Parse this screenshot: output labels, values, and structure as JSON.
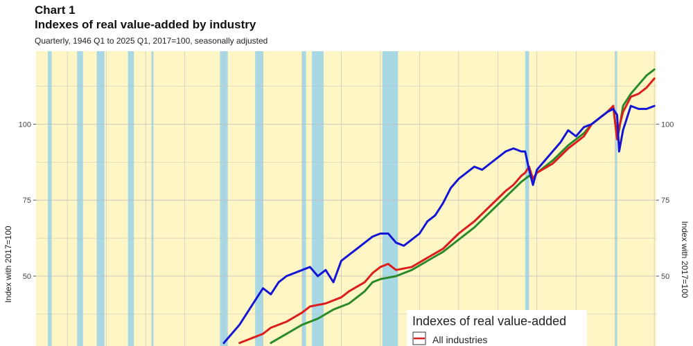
{
  "header": {
    "title": "Chart 1",
    "subtitle": "Indexes of real value-added by industry",
    "note": "Quarterly, 1946 Q1 to 2025 Q1, 2017=100, seasonally adjusted"
  },
  "colors": {
    "background": "#fff6c6",
    "recession": "#a8d8e4",
    "grid": "#bdbdbd",
    "all_industries": "#dd1c1c",
    "series_blue": "#1414d4",
    "series_green": "#2a8a2a"
  },
  "chart_data": {
    "type": "line",
    "title": "Indexes of real value-added by industry",
    "ylabel": "Index with 2017=100",
    "ylabel_right": "Index with 2017=100",
    "xlim": [
      1946,
      2025.25
    ],
    "ylim": [
      27,
      124
    ],
    "y_ticks": [
      50,
      75,
      100
    ],
    "y_tick_labels": [
      "50",
      "75",
      "100"
    ],
    "grid": true,
    "legend": {
      "title": "Indexes of real value-added",
      "placement": "bottom-right",
      "entries": [
        "All industries"
      ]
    },
    "recessions": [
      [
        1947.5,
        1948.0
      ],
      [
        1951.25,
        1952.0
      ],
      [
        1953.75,
        1954.75
      ],
      [
        1957.75,
        1958.5
      ],
      [
        1960.75,
        1961.0
      ],
      [
        1969.5,
        1970.5
      ],
      [
        1974.0,
        1975.0
      ],
      [
        1980.0,
        1980.5
      ],
      [
        1981.25,
        1982.75
      ],
      [
        1990.25,
        1992.25
      ],
      [
        2008.5,
        2009.0
      ],
      [
        2020.0,
        2020.25
      ]
    ],
    "series": [
      {
        "name": "All industries",
        "color": "#dd1c1c",
        "x": [
          1972,
          1974,
          1975,
          1976,
          1978,
          1980,
          1981,
          1983,
          1985,
          1986,
          1988,
          1989,
          1990,
          1991,
          1992,
          1994,
          1996,
          1998,
          2000,
          2001,
          2002,
          2004,
          2006,
          2007,
          2008,
          2008.5,
          2009,
          2009.5,
          2010,
          2012,
          2014,
          2015,
          2016,
          2017,
          2018,
          2019,
          2019.75,
          2020.25,
          2020.5,
          2021,
          2022,
          2023,
          2024,
          2025
        ],
        "values": [
          28,
          30,
          31,
          33,
          35,
          38,
          40,
          41,
          43,
          45,
          48,
          51,
          53,
          54,
          52,
          53,
          56,
          59,
          64,
          66,
          68,
          73,
          78,
          80,
          83,
          84,
          86,
          82,
          84,
          87,
          92,
          94,
          96,
          100,
          102,
          104,
          106,
          95,
          99,
          104,
          109,
          110,
          112,
          115
        ]
      },
      {
        "name": "",
        "color": "#1414d4",
        "x": [
          1970,
          1972,
          1973,
          1974,
          1975,
          1976,
          1977,
          1978,
          1979,
          1980,
          1981,
          1982,
          1983,
          1984,
          1985,
          1986,
          1987,
          1988,
          1989,
          1990,
          1991,
          1992,
          1993,
          1994,
          1995,
          1996,
          1997,
          1998,
          1999,
          2000,
          2001,
          2002,
          2003,
          2004,
          2005,
          2006,
          2007,
          2008,
          2008.5,
          2009,
          2009.5,
          2010,
          2011,
          2012,
          2013,
          2014,
          2015,
          2016,
          2017,
          2018,
          2019,
          2019.75,
          2020.25,
          2020.5,
          2021,
          2022,
          2023,
          2024,
          2025
        ],
        "values": [
          28,
          34,
          38,
          42,
          46,
          44,
          48,
          50,
          51,
          52,
          53,
          50,
          52,
          48,
          55,
          57,
          59,
          61,
          63,
          64,
          64,
          61,
          60,
          62,
          64,
          68,
          70,
          74,
          79,
          82,
          84,
          86,
          85,
          87,
          89,
          91,
          92,
          91,
          91,
          85,
          80,
          85,
          88,
          91,
          94,
          98,
          96,
          99,
          100,
          102,
          104,
          105,
          103,
          91,
          98,
          106,
          105,
          105,
          106
        ]
      },
      {
        "name": "",
        "color": "#2a8a2a",
        "x": [
          1976,
          1978,
          1980,
          1982,
          1984,
          1986,
          1988,
          1989,
          1990,
          1992,
          1994,
          1996,
          1998,
          2000,
          2002,
          2004,
          2006,
          2008,
          2009,
          2009.5,
          2010,
          2012,
          2014,
          2016,
          2017,
          2018,
          2019,
          2019.75,
          2020.25,
          2020.5,
          2021,
          2022,
          2023,
          2024,
          2025
        ],
        "values": [
          28,
          31,
          34,
          36,
          39,
          41,
          45,
          48,
          49,
          50,
          52,
          55,
          58,
          62,
          66,
          71,
          76,
          81,
          83,
          82,
          84,
          88,
          93,
          97,
          100,
          102,
          104,
          106,
          95,
          98,
          106,
          110,
          113,
          116,
          118
        ]
      }
    ]
  }
}
